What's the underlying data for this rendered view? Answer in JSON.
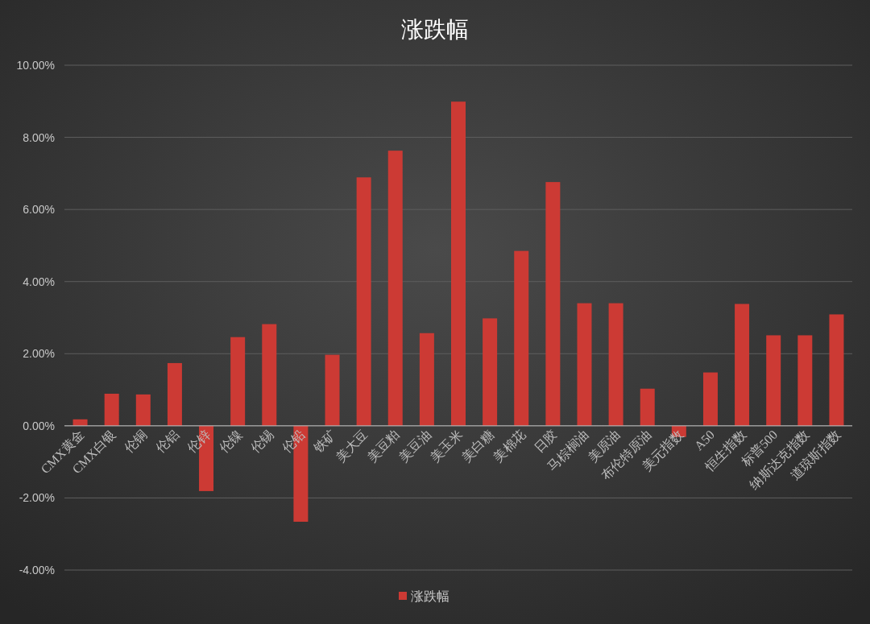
{
  "chart_data": {
    "type": "bar",
    "title": "涨跌幅",
    "categories": [
      "CMX黄金",
      "CMX白银",
      "伦铜",
      "伦铝",
      "伦锌",
      "伦镍",
      "伦锡",
      "伦铅",
      "铁矿",
      "美大豆",
      "美豆粕",
      "美豆油",
      "美玉米",
      "美白糖",
      "美棉花",
      "日胶",
      "马棕榈油",
      "美原油",
      "布伦特原油",
      "美元指数",
      "A50",
      "恒生指数",
      "标普500",
      "纳斯达克指数",
      "道琼斯指数"
    ],
    "series": [
      {
        "name": "涨跌幅",
        "color": "#cc3a34",
        "values": [
          0.18,
          0.89,
          0.87,
          1.74,
          -1.81,
          2.46,
          2.82,
          -2.66,
          1.97,
          6.89,
          7.63,
          2.57,
          8.99,
          2.98,
          4.85,
          6.76,
          3.4,
          3.4,
          1.03,
          -0.31,
          1.48,
          3.38,
          2.51,
          2.51,
          3.09
        ]
      }
    ],
    "ylim": [
      -4,
      10
    ],
    "yticks": [
      {
        "value": -4,
        "label": "-4.00%"
      },
      {
        "value": -2,
        "label": "-2.00%"
      },
      {
        "value": 0,
        "label": "0.00%"
      },
      {
        "value": 2,
        "label": "2.00%"
      },
      {
        "value": 4,
        "label": "4.00%"
      },
      {
        "value": 6,
        "label": "6.00%"
      },
      {
        "value": 8,
        "label": "8.00%"
      },
      {
        "value": 10,
        "label": "10.00%"
      }
    ],
    "grid": "y",
    "legend": "bottom"
  }
}
